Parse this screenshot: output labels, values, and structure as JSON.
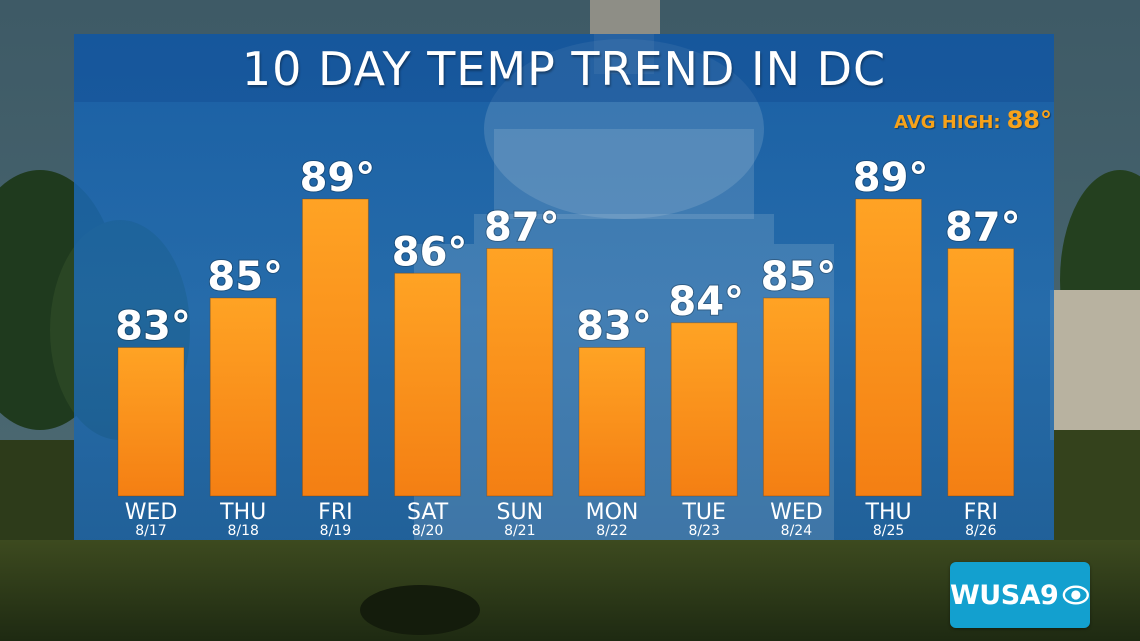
{
  "chart_data": {
    "type": "bar",
    "title": "10 DAY TEMP TREND IN DC",
    "categories": [
      "WED",
      "THU",
      "FRI",
      "SAT",
      "SUN",
      "MON",
      "TUE",
      "WED",
      "THU",
      "FRI"
    ],
    "dates": [
      "8/17",
      "8/18",
      "8/19",
      "8/20",
      "8/21",
      "8/22",
      "8/23",
      "8/24",
      "8/25",
      "8/26"
    ],
    "values": [
      83,
      85,
      89,
      86,
      87,
      83,
      84,
      85,
      89,
      87
    ],
    "value_labels": [
      "83°",
      "85°",
      "89°",
      "86°",
      "87°",
      "83°",
      "84°",
      "85°",
      "89°",
      "87°"
    ],
    "xlabel": "",
    "ylabel": "",
    "ylim": [
      77,
      89
    ],
    "grid": false,
    "bar_color": "#f7931e"
  },
  "annotation": {
    "label": "AVG HIGH:",
    "value": "88°"
  },
  "logo": {
    "text": "WUSA9"
  },
  "colors": {
    "panel": "#1e6eb9",
    "accent": "#f7a21a",
    "logo_bg": "#13a0cf"
  }
}
